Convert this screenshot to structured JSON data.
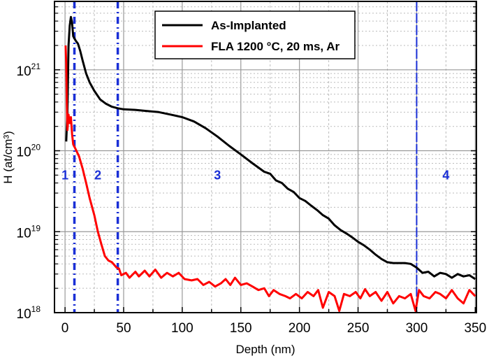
{
  "chart_data": {
    "type": "line",
    "title": "",
    "xlabel": "Depth (nm)",
    "ylabel": "H (at/cm³)",
    "xlim": [
      -9,
      351
    ],
    "ylim": [
      1e+18,
      7e+21
    ],
    "yscale": "log",
    "grid": true,
    "legend_position": "top-right",
    "x_ticks": [
      "0",
      "50",
      "100",
      "150",
      "200",
      "250",
      "300",
      "350"
    ],
    "y_ticks": [
      {
        "base": "10",
        "exp": "18"
      },
      {
        "base": "10",
        "exp": "19"
      },
      {
        "base": "10",
        "exp": "20"
      },
      {
        "base": "10",
        "exp": "21"
      }
    ],
    "vertical_lines": {
      "x": [
        8,
        45,
        300
      ],
      "color": "#1a2fd6",
      "style": "dashed"
    },
    "regions": [
      {
        "label": "1",
        "x": 0
      },
      {
        "label": "2",
        "x": 28
      },
      {
        "label": "3",
        "x": 130
      },
      {
        "label": "4",
        "x": 325
      }
    ],
    "series": [
      {
        "name": "As-Implanted",
        "color": "#000000",
        "points": [
          [
            1,
            1.3e+20
          ],
          [
            2,
            3e+20
          ],
          [
            3,
            2e+21
          ],
          [
            4,
            3.5e+21
          ],
          [
            5,
            4.5e+21
          ],
          [
            6,
            3.8e+21
          ],
          [
            7,
            2.6e+21
          ],
          [
            9,
            2.3e+21
          ],
          [
            11,
            2.1e+21
          ],
          [
            13,
            1.7e+21
          ],
          [
            15,
            1.3e+21
          ],
          [
            18,
            9e+20
          ],
          [
            21,
            7e+20
          ],
          [
            25,
            5.5e+20
          ],
          [
            30,
            4.3e+20
          ],
          [
            35,
            3.8e+20
          ],
          [
            40,
            3.5e+20
          ],
          [
            45,
            3.35e+20
          ],
          [
            50,
            3.25e+20
          ],
          [
            60,
            3.2e+20
          ],
          [
            70,
            3.1e+20
          ],
          [
            80,
            3e+20
          ],
          [
            90,
            2.8e+20
          ],
          [
            100,
            2.6e+20
          ],
          [
            110,
            2.3e+20
          ],
          [
            120,
            1.9e+20
          ],
          [
            130,
            1.5e+20
          ],
          [
            140,
            1.15e+20
          ],
          [
            150,
            9e+19
          ],
          [
            160,
            7e+19
          ],
          [
            170,
            5.5e+19
          ],
          [
            175,
            5.2e+19
          ],
          [
            180,
            4.3e+19
          ],
          [
            185,
            4e+19
          ],
          [
            190,
            3.4e+19
          ],
          [
            195,
            3.1e+19
          ],
          [
            200,
            2.6e+19
          ],
          [
            205,
            2.4e+19
          ],
          [
            210,
            2.1e+19
          ],
          [
            215,
            1.85e+19
          ],
          [
            220,
            1.6e+19
          ],
          [
            225,
            1.45e+19
          ],
          [
            230,
            1.2e+19
          ],
          [
            235,
            1.05e+19
          ],
          [
            240,
            9.5e+18
          ],
          [
            245,
            8.5e+18
          ],
          [
            250,
            7.5e+18
          ],
          [
            255,
            6.8e+18
          ],
          [
            260,
            6e+18
          ],
          [
            265,
            5.2e+18
          ],
          [
            270,
            4.6e+18
          ],
          [
            275,
            4.2e+18
          ],
          [
            280,
            4.1e+18
          ],
          [
            290,
            4.1e+18
          ],
          [
            295,
            4e+18
          ],
          [
            300,
            3.6e+18
          ],
          [
            305,
            3.1e+18
          ],
          [
            310,
            3.2e+18
          ],
          [
            315,
            2.8e+18
          ],
          [
            320,
            3.1e+18
          ],
          [
            325,
            3e+18
          ],
          [
            330,
            2.7e+18
          ],
          [
            335,
            3e+18
          ],
          [
            340,
            2.8e+18
          ],
          [
            345,
            2.9e+18
          ],
          [
            350,
            2.6e+18
          ]
        ]
      },
      {
        "name": "FLA 1200 °C, 20 ms, Ar",
        "color": "#ff0000",
        "points": [
          [
            0.5,
            2e+21
          ],
          [
            1,
            1.2e+21
          ],
          [
            1.5,
            4e+20
          ],
          [
            2,
            1.8e+20
          ],
          [
            3,
            2.8e+20
          ],
          [
            4,
            2.2e+20
          ],
          [
            5,
            2.6e+20
          ],
          [
            6,
            1.6e+20
          ],
          [
            7,
            1.2e+20
          ],
          [
            9,
            1.05e+20
          ],
          [
            12,
            8.5e+19
          ],
          [
            15,
            6e+19
          ],
          [
            18,
            4e+19
          ],
          [
            21,
            2.6e+19
          ],
          [
            25,
            1.6e+19
          ],
          [
            28,
            1e+19
          ],
          [
            31,
            7e+18
          ],
          [
            34,
            5e+18
          ],
          [
            37,
            4.4e+18
          ],
          [
            40,
            4.2e+18
          ],
          [
            44,
            3.6e+18
          ],
          [
            46,
            3.5e+18
          ],
          [
            48,
            2.9e+18
          ],
          [
            52,
            3.1e+18
          ],
          [
            55,
            2.7e+18
          ],
          [
            60,
            3.2e+18
          ],
          [
            63,
            2.8e+18
          ],
          [
            68,
            3.3e+18
          ],
          [
            72,
            2.8e+18
          ],
          [
            77,
            3.4e+18
          ],
          [
            82,
            2.7e+18
          ],
          [
            87,
            3.1e+18
          ],
          [
            92,
            2.8e+18
          ],
          [
            97,
            3.1e+18
          ],
          [
            102,
            2.6e+18
          ],
          [
            108,
            2.5e+18
          ],
          [
            113,
            2.6e+18
          ],
          [
            118,
            2.2e+18
          ],
          [
            123,
            2.4e+18
          ],
          [
            128,
            2.1e+18
          ],
          [
            133,
            2.3e+18
          ],
          [
            137,
            2.6e+18
          ],
          [
            141,
            2.2e+18
          ],
          [
            145,
            2.7e+18
          ],
          [
            150,
            2.2e+18
          ],
          [
            155,
            2.3e+18
          ],
          [
            160,
            2.1e+18
          ],
          [
            165,
            1.9e+18
          ],
          [
            170,
            2e+18
          ],
          [
            174,
            1.6e+18
          ],
          [
            178,
            1.9e+18
          ],
          [
            183,
            1.7e+18
          ],
          [
            188,
            1.6e+18
          ],
          [
            192,
            1.5e+18
          ],
          [
            197,
            1.7e+18
          ],
          [
            202,
            1.5e+18
          ],
          [
            207,
            1.8e+18
          ],
          [
            212,
            1.6e+18
          ],
          [
            216,
            1.9e+18
          ],
          [
            220,
            1.15e+18
          ],
          [
            225,
            1.8e+18
          ],
          [
            230,
            1.6e+18
          ],
          [
            234,
            1.05e+18
          ],
          [
            238,
            1.7e+18
          ],
          [
            243,
            1.6e+18
          ],
          [
            248,
            1.8e+18
          ],
          [
            252,
            1.5e+18
          ],
          [
            256,
            1.95e+18
          ],
          [
            260,
            1.6e+18
          ],
          [
            265,
            1.8e+18
          ],
          [
            270,
            1.4e+18
          ],
          [
            275,
            1.8e+18
          ],
          [
            280,
            1.3e+18
          ],
          [
            285,
            1.6e+18
          ],
          [
            290,
            1.5e+18
          ],
          [
            295,
            1.7e+18
          ],
          [
            299,
            1.05e+18
          ],
          [
            302,
            1.9e+18
          ],
          [
            306,
            1.6e+18
          ],
          [
            311,
            1.5e+18
          ],
          [
            316,
            1.8e+18
          ],
          [
            320,
            1.7e+18
          ],
          [
            325,
            1.5e+18
          ],
          [
            330,
            1.9e+18
          ],
          [
            335,
            1.5e+18
          ],
          [
            340,
            1.3e+18
          ],
          [
            345,
            1.9e+18
          ],
          [
            350,
            1.6e+18
          ]
        ]
      }
    ]
  }
}
